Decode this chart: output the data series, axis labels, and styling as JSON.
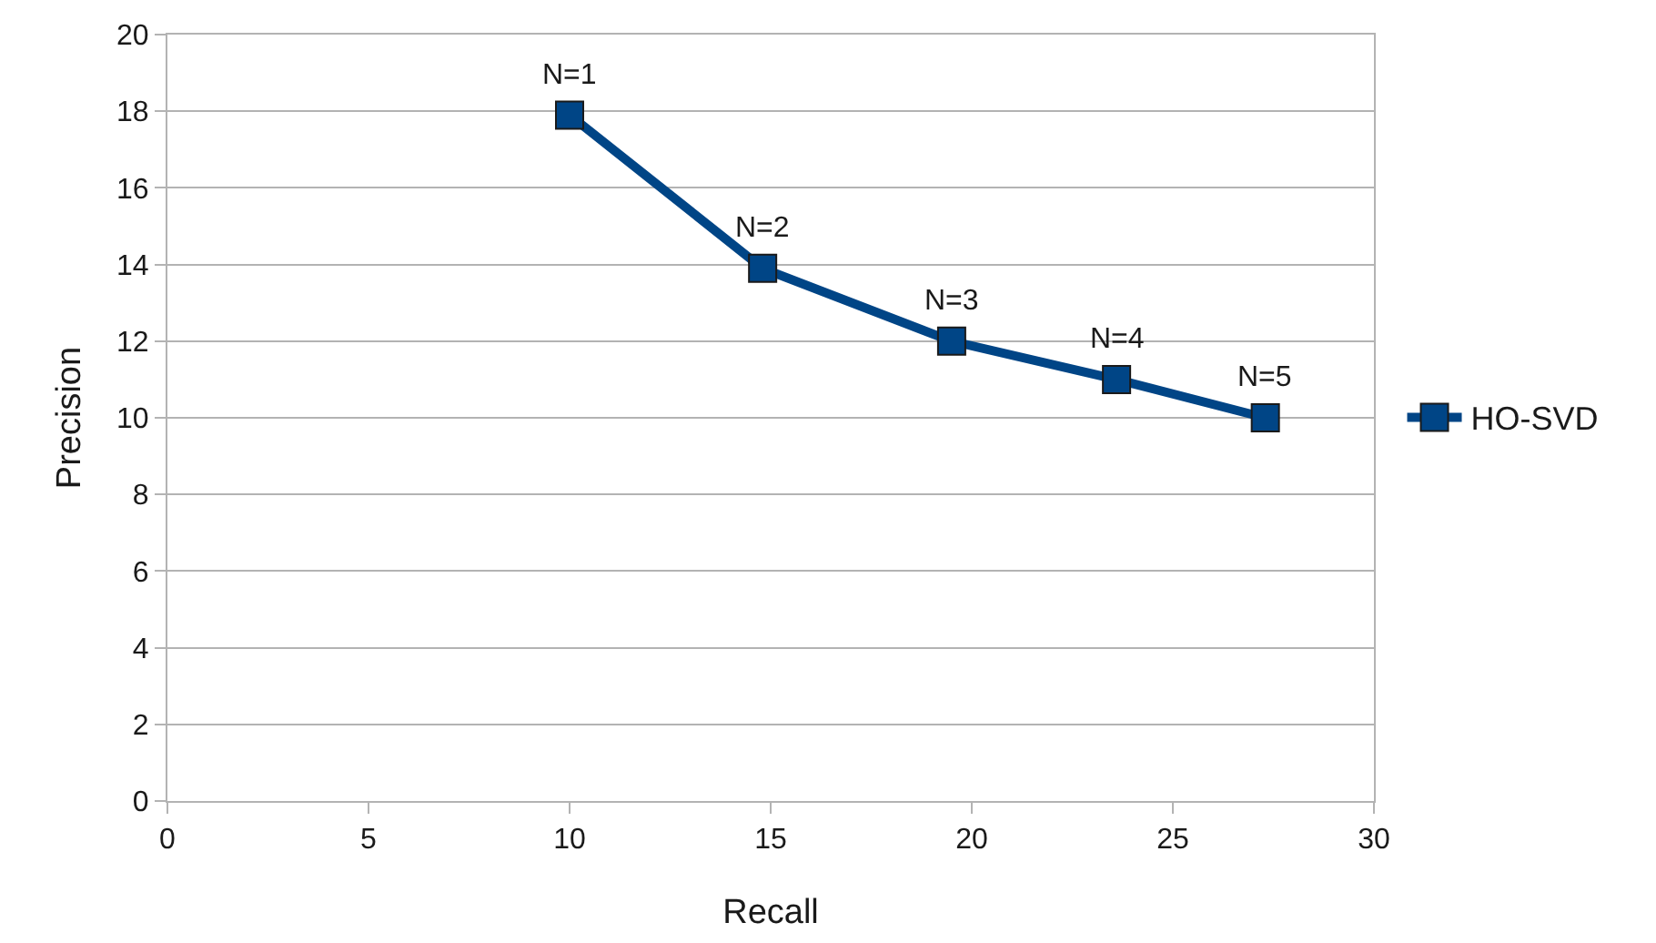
{
  "chart_data": {
    "type": "line",
    "xlabel": "Recall",
    "ylabel": "Precision",
    "x": [
      10,
      14.8,
      19.5,
      23.6,
      27.3
    ],
    "series": [
      {
        "name": "HO-SVD",
        "color": "#004586",
        "values": [
          17.9,
          13.9,
          12,
          11,
          10
        ]
      }
    ],
    "annotations": [
      {
        "text": "N=1",
        "x": 10,
        "y": 17.9
      },
      {
        "text": "N=2",
        "x": 14.8,
        "y": 13.9
      },
      {
        "text": "N=3",
        "x": 19.5,
        "y": 12
      },
      {
        "text": "N=4",
        "x": 23.6,
        "y": 11
      },
      {
        "text": "N=5",
        "x": 27.3,
        "y": 10
      }
    ],
    "xlim": [
      0,
      30
    ],
    "xticks": [
      0,
      5,
      10,
      15,
      20,
      25,
      30
    ],
    "ylim": [
      0,
      20
    ],
    "yticks": [
      0,
      2,
      4,
      6,
      8,
      10,
      12,
      14,
      16,
      18,
      20
    ],
    "grid": "y",
    "legend": "right",
    "marker": "square",
    "line_style": "solid"
  }
}
